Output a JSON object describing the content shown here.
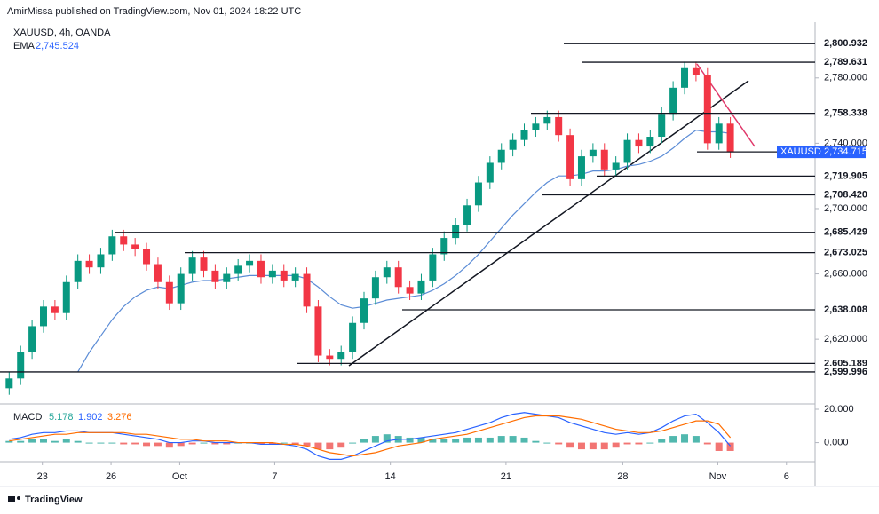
{
  "header": "AmirMissa published on TradingView.com, Nov 01, 2024 18:22 UTC",
  "footer": "TradingView",
  "chart_data": [
    {
      "type": "candlestick",
      "title": "XAUUSD, 4h, OANDA",
      "x": [
        0,
        1,
        2,
        3,
        4,
        5,
        6,
        7,
        8,
        9,
        10,
        11,
        12,
        13,
        14,
        15,
        16,
        17,
        18,
        19,
        20,
        21,
        22,
        23,
        24,
        25,
        26,
        27,
        28,
        29,
        30,
        31,
        32,
        33,
        34,
        35,
        36,
        37,
        38,
        39,
        40,
        41,
        42,
        43,
        44,
        45,
        46,
        47,
        48,
        49,
        50,
        51,
        52,
        53,
        54,
        55,
        56,
        57,
        58,
        59,
        60,
        61,
        62,
        63
      ],
      "open": [
        2590,
        2596,
        2612,
        2628,
        2640,
        2636,
        2655,
        2668,
        2664,
        2672,
        2683,
        2678,
        2675,
        2666,
        2655,
        2642,
        2660,
        2670,
        2662,
        2655,
        2660,
        2665,
        2668,
        2658,
        2662,
        2656,
        2660,
        2640,
        2610,
        2608,
        2612,
        2630,
        2645,
        2658,
        2664,
        2652,
        2648,
        2656,
        2672,
        2682,
        2690,
        2702,
        2716,
        2728,
        2736,
        2742,
        2748,
        2752,
        2756,
        2745,
        2718,
        2732,
        2736,
        2724,
        2728,
        2742,
        2738,
        2744,
        2758,
        2774,
        2786,
        2782,
        2740,
        2752
      ],
      "high": [
        2600,
        2616,
        2632,
        2644,
        2644,
        2659,
        2672,
        2672,
        2676,
        2687,
        2687,
        2682,
        2679,
        2670,
        2659,
        2664,
        2674,
        2674,
        2666,
        2664,
        2669,
        2672,
        2672,
        2666,
        2666,
        2664,
        2664,
        2644,
        2614,
        2616,
        2634,
        2649,
        2662,
        2668,
        2668,
        2656,
        2660,
        2676,
        2686,
        2694,
        2706,
        2720,
        2732,
        2740,
        2746,
        2752,
        2756,
        2760,
        2760,
        2749,
        2736,
        2740,
        2740,
        2732,
        2746,
        2746,
        2748,
        2762,
        2778,
        2790,
        2790,
        2786,
        2756,
        2756
      ],
      "low": [
        2586,
        2592,
        2608,
        2624,
        2632,
        2632,
        2651,
        2660,
        2660,
        2668,
        2674,
        2671,
        2662,
        2651,
        2638,
        2638,
        2656,
        2658,
        2651,
        2651,
        2656,
        2661,
        2654,
        2654,
        2652,
        2652,
        2636,
        2606,
        2604,
        2604,
        2608,
        2626,
        2641,
        2654,
        2648,
        2644,
        2644,
        2652,
        2668,
        2678,
        2686,
        2698,
        2712,
        2724,
        2732,
        2738,
        2744,
        2748,
        2741,
        2714,
        2714,
        2728,
        2720,
        2720,
        2724,
        2734,
        2734,
        2740,
        2754,
        2770,
        2778,
        2736,
        2736,
        2731
      ],
      "close": [
        2596,
        2612,
        2628,
        2640,
        2636,
        2655,
        2668,
        2664,
        2672,
        2683,
        2678,
        2675,
        2666,
        2655,
        2642,
        2660,
        2670,
        2662,
        2655,
        2660,
        2665,
        2668,
        2658,
        2662,
        2656,
        2660,
        2640,
        2610,
        2608,
        2612,
        2630,
        2645,
        2658,
        2664,
        2652,
        2648,
        2656,
        2672,
        2682,
        2690,
        2702,
        2716,
        2728,
        2736,
        2742,
        2748,
        2752,
        2756,
        2745,
        2718,
        2732,
        2736,
        2724,
        2728,
        2742,
        2738,
        2744,
        2758,
        2774,
        2786,
        2782,
        2740,
        2752,
        2735
      ],
      "up_color": "#089981",
      "down_color": "#f23645",
      "series": [
        {
          "name": "EMA",
          "value_label": "2,745.524",
          "color": "#5b8cd6",
          "values": [
            null,
            null,
            null,
            null,
            null,
            null,
            2600,
            2612,
            2622,
            2632,
            2640,
            2646,
            2650,
            2652,
            2651,
            2653,
            2655,
            2656,
            2656,
            2657,
            2658,
            2659,
            2659,
            2659,
            2659,
            2659,
            2657,
            2652,
            2646,
            2641,
            2639,
            2640,
            2642,
            2644,
            2645,
            2646,
            2647,
            2650,
            2654,
            2659,
            2665,
            2672,
            2680,
            2688,
            2696,
            2703,
            2710,
            2716,
            2720,
            2720,
            2721,
            2723,
            2723,
            2724,
            2726,
            2727,
            2729,
            2732,
            2737,
            2743,
            2748,
            2747,
            2747,
            2746
          ]
        }
      ],
      "last_price": {
        "name": "XAUUSD",
        "value": 2734.715,
        "label": "2,734.715",
        "color": "#2962ff"
      },
      "levels": [
        {
          "value": 2800.932,
          "label": "2,800.932"
        },
        {
          "value": 2789.631,
          "label": "2,789.631"
        },
        {
          "value": 2758.338,
          "label": "2,758.338"
        },
        {
          "value": 2719.905,
          "label": "2,719.905"
        },
        {
          "value": 2708.42,
          "label": "2,708.420"
        },
        {
          "value": 2685.429,
          "label": "2,685.429"
        },
        {
          "value": 2673.025,
          "label": "2,673.025"
        },
        {
          "value": 2638.008,
          "label": "2,638.008"
        },
        {
          "value": 2605.189,
          "label": "2,605.189"
        },
        {
          "value": 2599.996,
          "label": "2,599.996"
        }
      ],
      "xlim": [
        -0.8,
        70.4
      ],
      "xticks": [
        {
          "value": 2.9,
          "label": "23"
        },
        {
          "value": 8.9,
          "label": "26"
        },
        {
          "value": 14.9,
          "label": "Oct"
        },
        {
          "value": 23.2,
          "label": "7"
        },
        {
          "value": 33.3,
          "label": "14"
        },
        {
          "value": 43.4,
          "label": "21"
        },
        {
          "value": 53.6,
          "label": "28"
        },
        {
          "value": 61.9,
          "label": "Nov"
        },
        {
          "value": 67.9,
          "label": "6"
        }
      ],
      "ylim": [
        2580.4,
        2812.5
      ],
      "yticks": [
        {
          "value": 2620,
          "label": "2,620.000"
        },
        {
          "value": 2660,
          "label": "2,660.000"
        },
        {
          "value": 2700,
          "label": "2,700.000"
        },
        {
          "value": 2740,
          "label": "2,740.000"
        },
        {
          "value": 2780,
          "label": "2,780.000"
        }
      ]
    },
    {
      "type": "macd",
      "title": "MACD",
      "ylim": [
        -11.4,
        23.2
      ],
      "yticks": [
        {
          "value": 0,
          "label": "0.000"
        },
        {
          "value": 20,
          "label": "20.000"
        }
      ],
      "series": [
        {
          "label": "5.178",
          "color": "#26a69a",
          "neg_color": "#ef5350",
          "kind": "histogram",
          "values": [
            1,
            1,
            2,
            2,
            1,
            2,
            1,
            0,
            0,
            0,
            -1,
            -1,
            -2,
            -2,
            -3,
            -2,
            -1,
            0,
            -1,
            -1,
            0,
            0,
            -1,
            -1,
            0,
            -1,
            -2,
            -4,
            -4,
            -3,
            0,
            2,
            4,
            5,
            4,
            3,
            3,
            2,
            2,
            2,
            3,
            3,
            3,
            4,
            4,
            3,
            1,
            0,
            -1,
            -3,
            -4,
            -4,
            -4,
            -3,
            -1,
            -1,
            0,
            2,
            4,
            5,
            4,
            -1,
            -5,
            -5
          ]
        },
        {
          "label": "1.902",
          "color": "#2962ff",
          "kind": "line",
          "values": [
            2,
            3,
            5,
            6,
            6,
            7,
            7,
            6,
            6,
            6,
            5,
            4,
            3,
            2,
            0,
            0,
            1,
            1,
            0,
            0,
            0,
            0,
            -1,
            -1,
            -1,
            -2,
            -4,
            -8,
            -10,
            -10,
            -8,
            -5,
            -2,
            1,
            2,
            2,
            3,
            4,
            5,
            6,
            8,
            10,
            12,
            15,
            17,
            18,
            17,
            16,
            15,
            12,
            10,
            8,
            6,
            5,
            6,
            5,
            6,
            9,
            13,
            16,
            17,
            12,
            6,
            -2
          ]
        },
        {
          "label": "3.276",
          "color": "#ff6d00",
          "kind": "line",
          "values": [
            1,
            2,
            3,
            4,
            5,
            5,
            6,
            6,
            6,
            6,
            6,
            5,
            5,
            4,
            3,
            2,
            2,
            1,
            1,
            1,
            0,
            0,
            0,
            0,
            -1,
            -1,
            -2,
            -4,
            -6,
            -7,
            -8,
            -7,
            -6,
            -4,
            -2,
            -1,
            0,
            2,
            3,
            4,
            5,
            7,
            9,
            11,
            13,
            15,
            16,
            16,
            16,
            15,
            14,
            12,
            10,
            8,
            7,
            6,
            6,
            7,
            9,
            11,
            13,
            13,
            11,
            3
          ]
        }
      ]
    }
  ]
}
